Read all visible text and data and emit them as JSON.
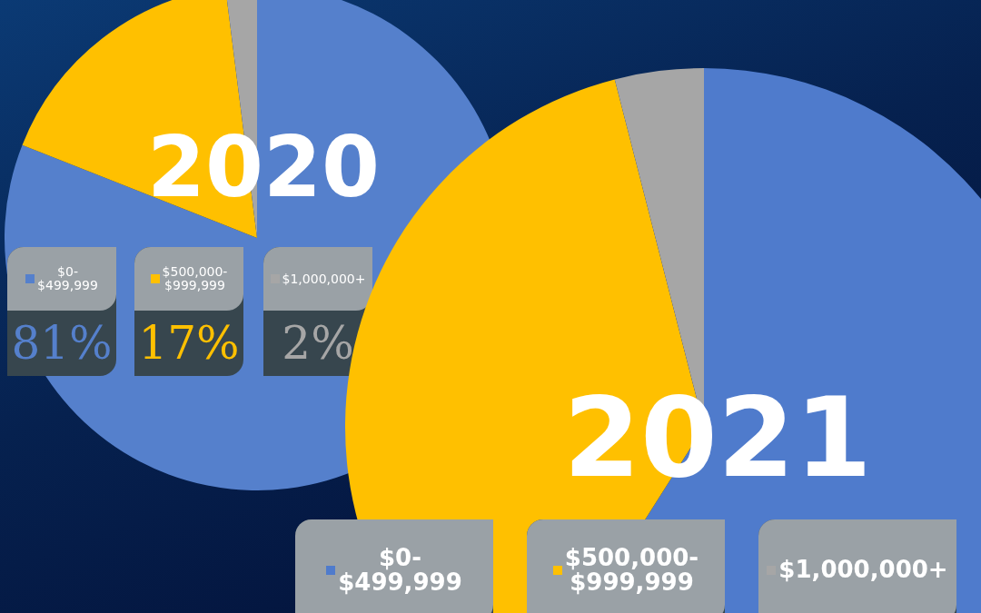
{
  "chart_data": [
    {
      "type": "pie",
      "title": "2020",
      "categories": [
        "$0-\n$499,999",
        "$500,000-\n$999,999",
        "$1,000,000+"
      ],
      "values": [
        81,
        17,
        2
      ],
      "colors": [
        "#5580cc",
        "#ffc000",
        "#a6a6a6"
      ],
      "value_labels": [
        "81%",
        "17%",
        "2%"
      ],
      "legend": "bottom"
    },
    {
      "type": "pie",
      "title": "2021",
      "categories": [
        "$0-\n$499,999",
        "$500,000-\n$999,999",
        "$1,000,000+"
      ],
      "values": [
        59,
        37,
        4
      ],
      "colors": [
        "#4f7bcc",
        "#ffc000",
        "#a6a6a6"
      ],
      "legend": "bottom"
    }
  ]
}
